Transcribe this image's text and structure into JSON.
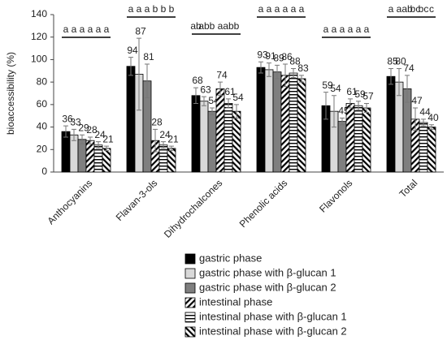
{
  "chart_data": {
    "type": "bar",
    "ylabel": "bioaccessibility (%)",
    "categories": [
      "Anthocyanins",
      "Flavan-3-ols",
      "Dihydrochalcones",
      "Phenolic acids",
      "Flavonols",
      "Total"
    ],
    "ylim": [
      0,
      140
    ],
    "yticks": [
      0,
      20,
      40,
      60,
      80,
      100,
      120,
      140
    ],
    "series": [
      {
        "name": "gastric phase",
        "color": "#000000",
        "pattern": "solid",
        "values": [
          36,
          94,
          68,
          93,
          59,
          85
        ],
        "errors": [
          5,
          8,
          7,
          5,
          12,
          7
        ]
      },
      {
        "name": "gastric phase with β-glucan 1",
        "color": "#d9d9d9",
        "pattern": "solid",
        "values": [
          33,
          87,
          63,
          91,
          54,
          80
        ],
        "errors": [
          5,
          32,
          4,
          6,
          14,
          12
        ]
      },
      {
        "name": "gastric phase with β-glucan 2",
        "color": "#7f7f7f",
        "pattern": "solid",
        "values": [
          29,
          81,
          54,
          89,
          45,
          74
        ],
        "errors": [
          4,
          15,
          3,
          6,
          3,
          12
        ]
      },
      {
        "name": "intestinal phase",
        "color": "#000000",
        "pattern": "diagonal-up",
        "values": [
          28,
          28,
          74,
          86,
          61,
          47
        ],
        "errors": [
          3,
          10,
          6,
          10,
          4,
          10
        ]
      },
      {
        "name": "intestinal phase with β-glucan 1",
        "color": "#000000",
        "pattern": "horizontal",
        "values": [
          24,
          24,
          61,
          88,
          59,
          44
        ],
        "errors": [
          3,
          3,
          4,
          4,
          4,
          3
        ]
      },
      {
        "name": "intestinal phase with β-glucan 2",
        "color": "#000000",
        "pattern": "diagonal-down",
        "values": [
          21,
          21,
          54,
          83,
          57,
          40
        ],
        "errors": [
          2,
          2,
          6,
          3,
          4,
          2
        ]
      }
    ],
    "significance": [
      [
        "a",
        "a",
        "a",
        "a",
        "a",
        "a"
      ],
      [
        "a",
        "a",
        "a",
        "b",
        "b",
        "b"
      ],
      [
        "ab",
        "ab",
        "b",
        "a",
        "ab",
        "b"
      ],
      [
        "a",
        "a",
        "a",
        "a",
        "a",
        "a"
      ],
      [
        "a",
        "a",
        "a",
        "a",
        "a",
        "a"
      ],
      [
        "a",
        "a",
        "ab",
        "bc",
        "bc",
        "c"
      ]
    ]
  }
}
